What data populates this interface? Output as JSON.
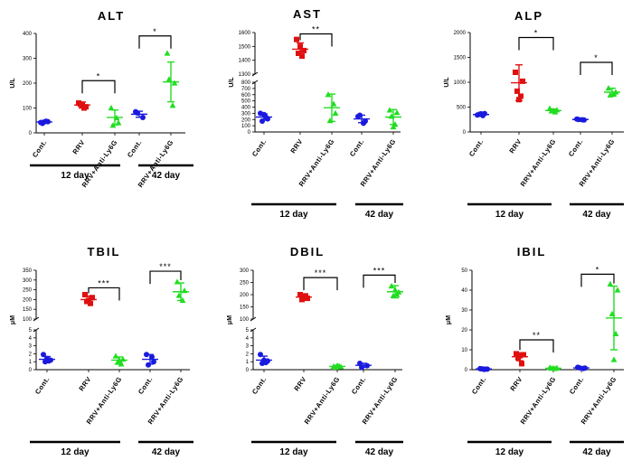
{
  "group_colors": {
    "Cont.": "#1a1adf",
    "RRV": "#e01010",
    "RRV+Anti-Ly6G": "#22dd22"
  },
  "chart_data": [
    {
      "type": "scatter",
      "title": "ALT",
      "ylabel": "U/L",
      "ylim": [
        0,
        400
      ],
      "yticks": [
        0,
        100,
        200,
        300,
        400
      ],
      "axis_break": null,
      "categories": [
        "Cont.",
        "RRV",
        "RRV+Anti-Ly6G",
        "Cont.",
        "RRV+Anti-Ly6G"
      ],
      "time_groups": [
        {
          "label": "12 day",
          "members": [
            0,
            1,
            2
          ]
        },
        {
          "label": "42 day",
          "members": [
            3,
            4
          ]
        }
      ],
      "series": [
        {
          "name": "Cont.",
          "day": "12 day",
          "marker": "circle",
          "values": [
            42,
            45,
            38,
            47,
            44
          ],
          "mean": 44,
          "sd": 5
        },
        {
          "name": "RRV",
          "day": "12 day",
          "marker": "square",
          "values": [
            120,
            105,
            115,
            100,
            112
          ],
          "mean": 112,
          "sd": 12
        },
        {
          "name": "RRV+Anti-Ly6G",
          "day": "12 day",
          "marker": "triangle",
          "values": [
            100,
            40,
            30,
            60
          ],
          "mean": 62,
          "sd": 30
        },
        {
          "name": "Cont.",
          "day": "42 day",
          "marker": "circle",
          "values": [
            85,
            62,
            80
          ],
          "mean": 75,
          "sd": 12
        },
        {
          "name": "RRV+Anti-Ly6G",
          "day": "42 day",
          "marker": "triangle",
          "values": [
            320,
            200,
            215,
            110
          ],
          "mean": 205,
          "sd": 80
        }
      ],
      "comparisons": [
        {
          "from": 1,
          "to": 2,
          "label": "*",
          "y": 210
        },
        {
          "from": 3,
          "to": 4,
          "label": "*",
          "y": 390
        }
      ]
    },
    {
      "type": "scatter",
      "title": "AST",
      "ylabel": "U/L",
      "ylim": [
        0,
        1600
      ],
      "yticks": [
        0,
        100,
        200,
        300,
        400,
        500,
        600,
        700,
        800,
        1300,
        1400,
        1500,
        1600
      ],
      "axis_break": {
        "lower_max": 800,
        "upper_min": 1300
      },
      "categories": [
        "Cont.",
        "RRV",
        "RRV+Anti-Ly6G",
        "Cont.",
        "RRV+Anti-Ly6G"
      ],
      "time_groups": [
        {
          "label": "12 day",
          "members": [
            0,
            1,
            2
          ]
        },
        {
          "label": "42 day",
          "members": [
            3,
            4
          ]
        }
      ],
      "series": [
        {
          "name": "Cont.",
          "day": "12 day",
          "marker": "circle",
          "values": [
            300,
            210,
            175,
            240,
            280
          ],
          "mean": 240,
          "sd": 50
        },
        {
          "name": "RRV",
          "day": "12 day",
          "marker": "square",
          "values": [
            1550,
            1470,
            1450,
            1430,
            1500
          ],
          "mean": 1480,
          "sd": 45
        },
        {
          "name": "RRV+Anti-Ly6G",
          "day": "12 day",
          "marker": "triangle",
          "values": [
            600,
            300,
            180,
            450
          ],
          "mean": 390,
          "sd": 220
        },
        {
          "name": "Cont.",
          "day": "42 day",
          "marker": "circle",
          "values": [
            250,
            175,
            270,
            140
          ],
          "mean": 210,
          "sd": 60
        },
        {
          "name": "RRV+Anti-Ly6G",
          "day": "42 day",
          "marker": "triangle",
          "values": [
            350,
            310,
            250,
            120,
            80
          ],
          "mean": 240,
          "sd": 120
        }
      ],
      "comparisons": [
        {
          "from": 1,
          "to": 2,
          "label": "**",
          "y": 1590
        }
      ]
    },
    {
      "type": "scatter",
      "title": "ALP",
      "ylabel": "U/L",
      "ylim": [
        0,
        2000
      ],
      "yticks": [
        0,
        500,
        1000,
        1500,
        2000
      ],
      "axis_break": null,
      "categories": [
        "Cont.",
        "RRV",
        "RRV+Anti-Ly6G",
        "Cont.",
        "RRV+Anti-Ly6G"
      ],
      "time_groups": [
        {
          "label": "12 day",
          "members": [
            0,
            1,
            2
          ]
        },
        {
          "label": "42 day",
          "members": [
            3,
            4
          ]
        }
      ],
      "series": [
        {
          "name": "Cont.",
          "day": "12 day",
          "marker": "circle",
          "values": [
            340,
            370,
            355,
            330,
            365
          ],
          "mean": 350,
          "sd": 20
        },
        {
          "name": "RRV",
          "day": "12 day",
          "marker": "square",
          "values": [
            1200,
            1020,
            820,
            720,
            650
          ],
          "mean": 990,
          "sd": 360
        },
        {
          "name": "RRV+Anti-Ly6G",
          "day": "12 day",
          "marker": "triangle",
          "values": [
            470,
            440,
            420,
            400,
            430
          ],
          "mean": 430,
          "sd": 30
        },
        {
          "name": "Cont.",
          "day": "42 day",
          "marker": "circle",
          "values": [
            260,
            240,
            250,
            245
          ],
          "mean": 250,
          "sd": 15
        },
        {
          "name": "RRV+Anti-Ly6G",
          "day": "42 day",
          "marker": "triangle",
          "values": [
            880,
            800,
            740,
            760
          ],
          "mean": 800,
          "sd": 80
        }
      ],
      "comparisons": [
        {
          "from": 1,
          "to": 2,
          "label": "*",
          "y": 1900
        },
        {
          "from": 3,
          "to": 4,
          "label": "*",
          "y": 1400
        }
      ]
    },
    {
      "type": "scatter",
      "title": "TBIL",
      "ylabel": "μM",
      "ylim": [
        0,
        350
      ],
      "yticks": [
        0,
        1,
        2,
        3,
        4,
        5,
        100,
        150,
        200,
        250,
        300,
        350
      ],
      "axis_break": {
        "lower_max": 5,
        "upper_min": 100
      },
      "categories": [
        "Cont.",
        "RRV",
        "RRV+Anti-Ly6G",
        "Cont.",
        "RRV+Anti-Ly6G"
      ],
      "time_groups": [
        {
          "label": "12 day",
          "members": [
            0,
            1,
            2
          ]
        },
        {
          "label": "42 day",
          "members": [
            3,
            4
          ]
        }
      ],
      "series": [
        {
          "name": "Cont.",
          "day": "12 day",
          "marker": "circle",
          "values": [
            1.9,
            1.2,
            1.0,
            1.1,
            1.4
          ],
          "mean": 1.3,
          "sd": 0.35
        },
        {
          "name": "RRV",
          "day": "12 day",
          "marker": "square",
          "values": [
            225,
            210,
            190,
            180,
            195
          ],
          "mean": 200,
          "sd": 18
        },
        {
          "name": "RRV+Anti-Ly6G",
          "day": "12 day",
          "marker": "triangle",
          "values": [
            1.7,
            1.3,
            0.9,
            0.7,
            1.2
          ],
          "mean": 1.2,
          "sd": 0.4
        },
        {
          "name": "Cont.",
          "day": "42 day",
          "marker": "circle",
          "values": [
            1.9,
            1.0,
            0.6,
            1.6
          ],
          "mean": 1.3,
          "sd": 0.6
        },
        {
          "name": "RRV+Anti-Ly6G",
          "day": "42 day",
          "marker": "triangle",
          "values": [
            290,
            245,
            220,
            195
          ],
          "mean": 240,
          "sd": 45
        }
      ],
      "comparisons": [
        {
          "from": 1,
          "to": 2,
          "label": "***",
          "y": 260
        },
        {
          "from": 3,
          "to": 4,
          "label": "***",
          "y": 345
        }
      ]
    },
    {
      "type": "scatter",
      "title": "DBIL",
      "ylabel": "μM",
      "ylim": [
        0,
        300
      ],
      "yticks": [
        0,
        1,
        2,
        3,
        4,
        5,
        100,
        150,
        200,
        250,
        300
      ],
      "axis_break": {
        "lower_max": 5,
        "upper_min": 100
      },
      "categories": [
        "Cont.",
        "RRV",
        "RRV+Anti-Ly6G",
        "Cont.",
        "RRV+Anti-Ly6G"
      ],
      "time_groups": [
        {
          "label": "12 day",
          "members": [
            0,
            1,
            2
          ]
        },
        {
          "label": "42 day",
          "members": [
            3,
            4
          ]
        }
      ],
      "series": [
        {
          "name": "Cont.",
          "day": "12 day",
          "marker": "circle",
          "values": [
            1.9,
            1.1,
            0.8,
            0.9,
            1.2
          ],
          "mean": 1.2,
          "sd": 0.5
        },
        {
          "name": "RRV",
          "day": "12 day",
          "marker": "square",
          "values": [
            200,
            185,
            180,
            195,
            190
          ],
          "mean": 190,
          "sd": 10
        },
        {
          "name": "RRV+Anti-Ly6G",
          "day": "12 day",
          "marker": "triangle",
          "values": [
            0.4,
            0.35,
            0.3,
            0.45,
            0.5
          ],
          "mean": 0.4,
          "sd": 0.08
        },
        {
          "name": "Cont.",
          "day": "42 day",
          "marker": "circle",
          "values": [
            0.8,
            0.5,
            0.3
          ],
          "mean": 0.55,
          "sd": 0.25
        },
        {
          "name": "RRV+Anti-Ly6G",
          "day": "42 day",
          "marker": "triangle",
          "values": [
            235,
            210,
            195,
            200,
            220
          ],
          "mean": 212,
          "sd": 25
        }
      ],
      "comparisons": [
        {
          "from": 1,
          "to": 2,
          "label": "***",
          "y": 270
        },
        {
          "from": 3,
          "to": 4,
          "label": "***",
          "y": 280
        }
      ]
    },
    {
      "type": "scatter",
      "title": "IBIL",
      "ylabel": "μM",
      "ylim": [
        0,
        50
      ],
      "yticks": [
        0,
        10,
        20,
        30,
        40,
        50
      ],
      "axis_break": null,
      "categories": [
        "Cont.",
        "RRV",
        "RRV+Anti-Ly6G",
        "Cont.",
        "RRV+Anti-Ly6G"
      ],
      "time_groups": [
        {
          "label": "12 day",
          "members": [
            0,
            1,
            2
          ]
        },
        {
          "label": "42 day",
          "members": [
            3,
            4
          ]
        }
      ],
      "series": [
        {
          "name": "Cont.",
          "day": "12 day",
          "marker": "circle",
          "values": [
            0.5,
            0.3,
            0.4,
            0.2,
            0.3
          ],
          "mean": 0.35,
          "sd": 0.1
        },
        {
          "name": "RRV",
          "day": "12 day",
          "marker": "square",
          "values": [
            8,
            7.5,
            6,
            3,
            7
          ],
          "mean": 6.5,
          "sd": 2
        },
        {
          "name": "RRV+Anti-Ly6G",
          "day": "12 day",
          "marker": "triangle",
          "values": [
            1.0,
            0.8,
            0.6,
            0.5,
            0.7
          ],
          "mean": 0.7,
          "sd": 0.2
        },
        {
          "name": "Cont.",
          "day": "42 day",
          "marker": "circle",
          "values": [
            1.2,
            0.8,
            0.9,
            0.6
          ],
          "mean": 0.9,
          "sd": 0.3
        },
        {
          "name": "RRV+Anti-Ly6G",
          "day": "42 day",
          "marker": "triangle",
          "values": [
            43,
            40,
            28,
            18,
            5
          ],
          "mean": 26,
          "sd": 16
        }
      ],
      "comparisons": [
        {
          "from": 1,
          "to": 2,
          "label": "**",
          "y": 15
        },
        {
          "from": 3,
          "to": 4,
          "label": "*",
          "y": 48
        }
      ]
    }
  ]
}
